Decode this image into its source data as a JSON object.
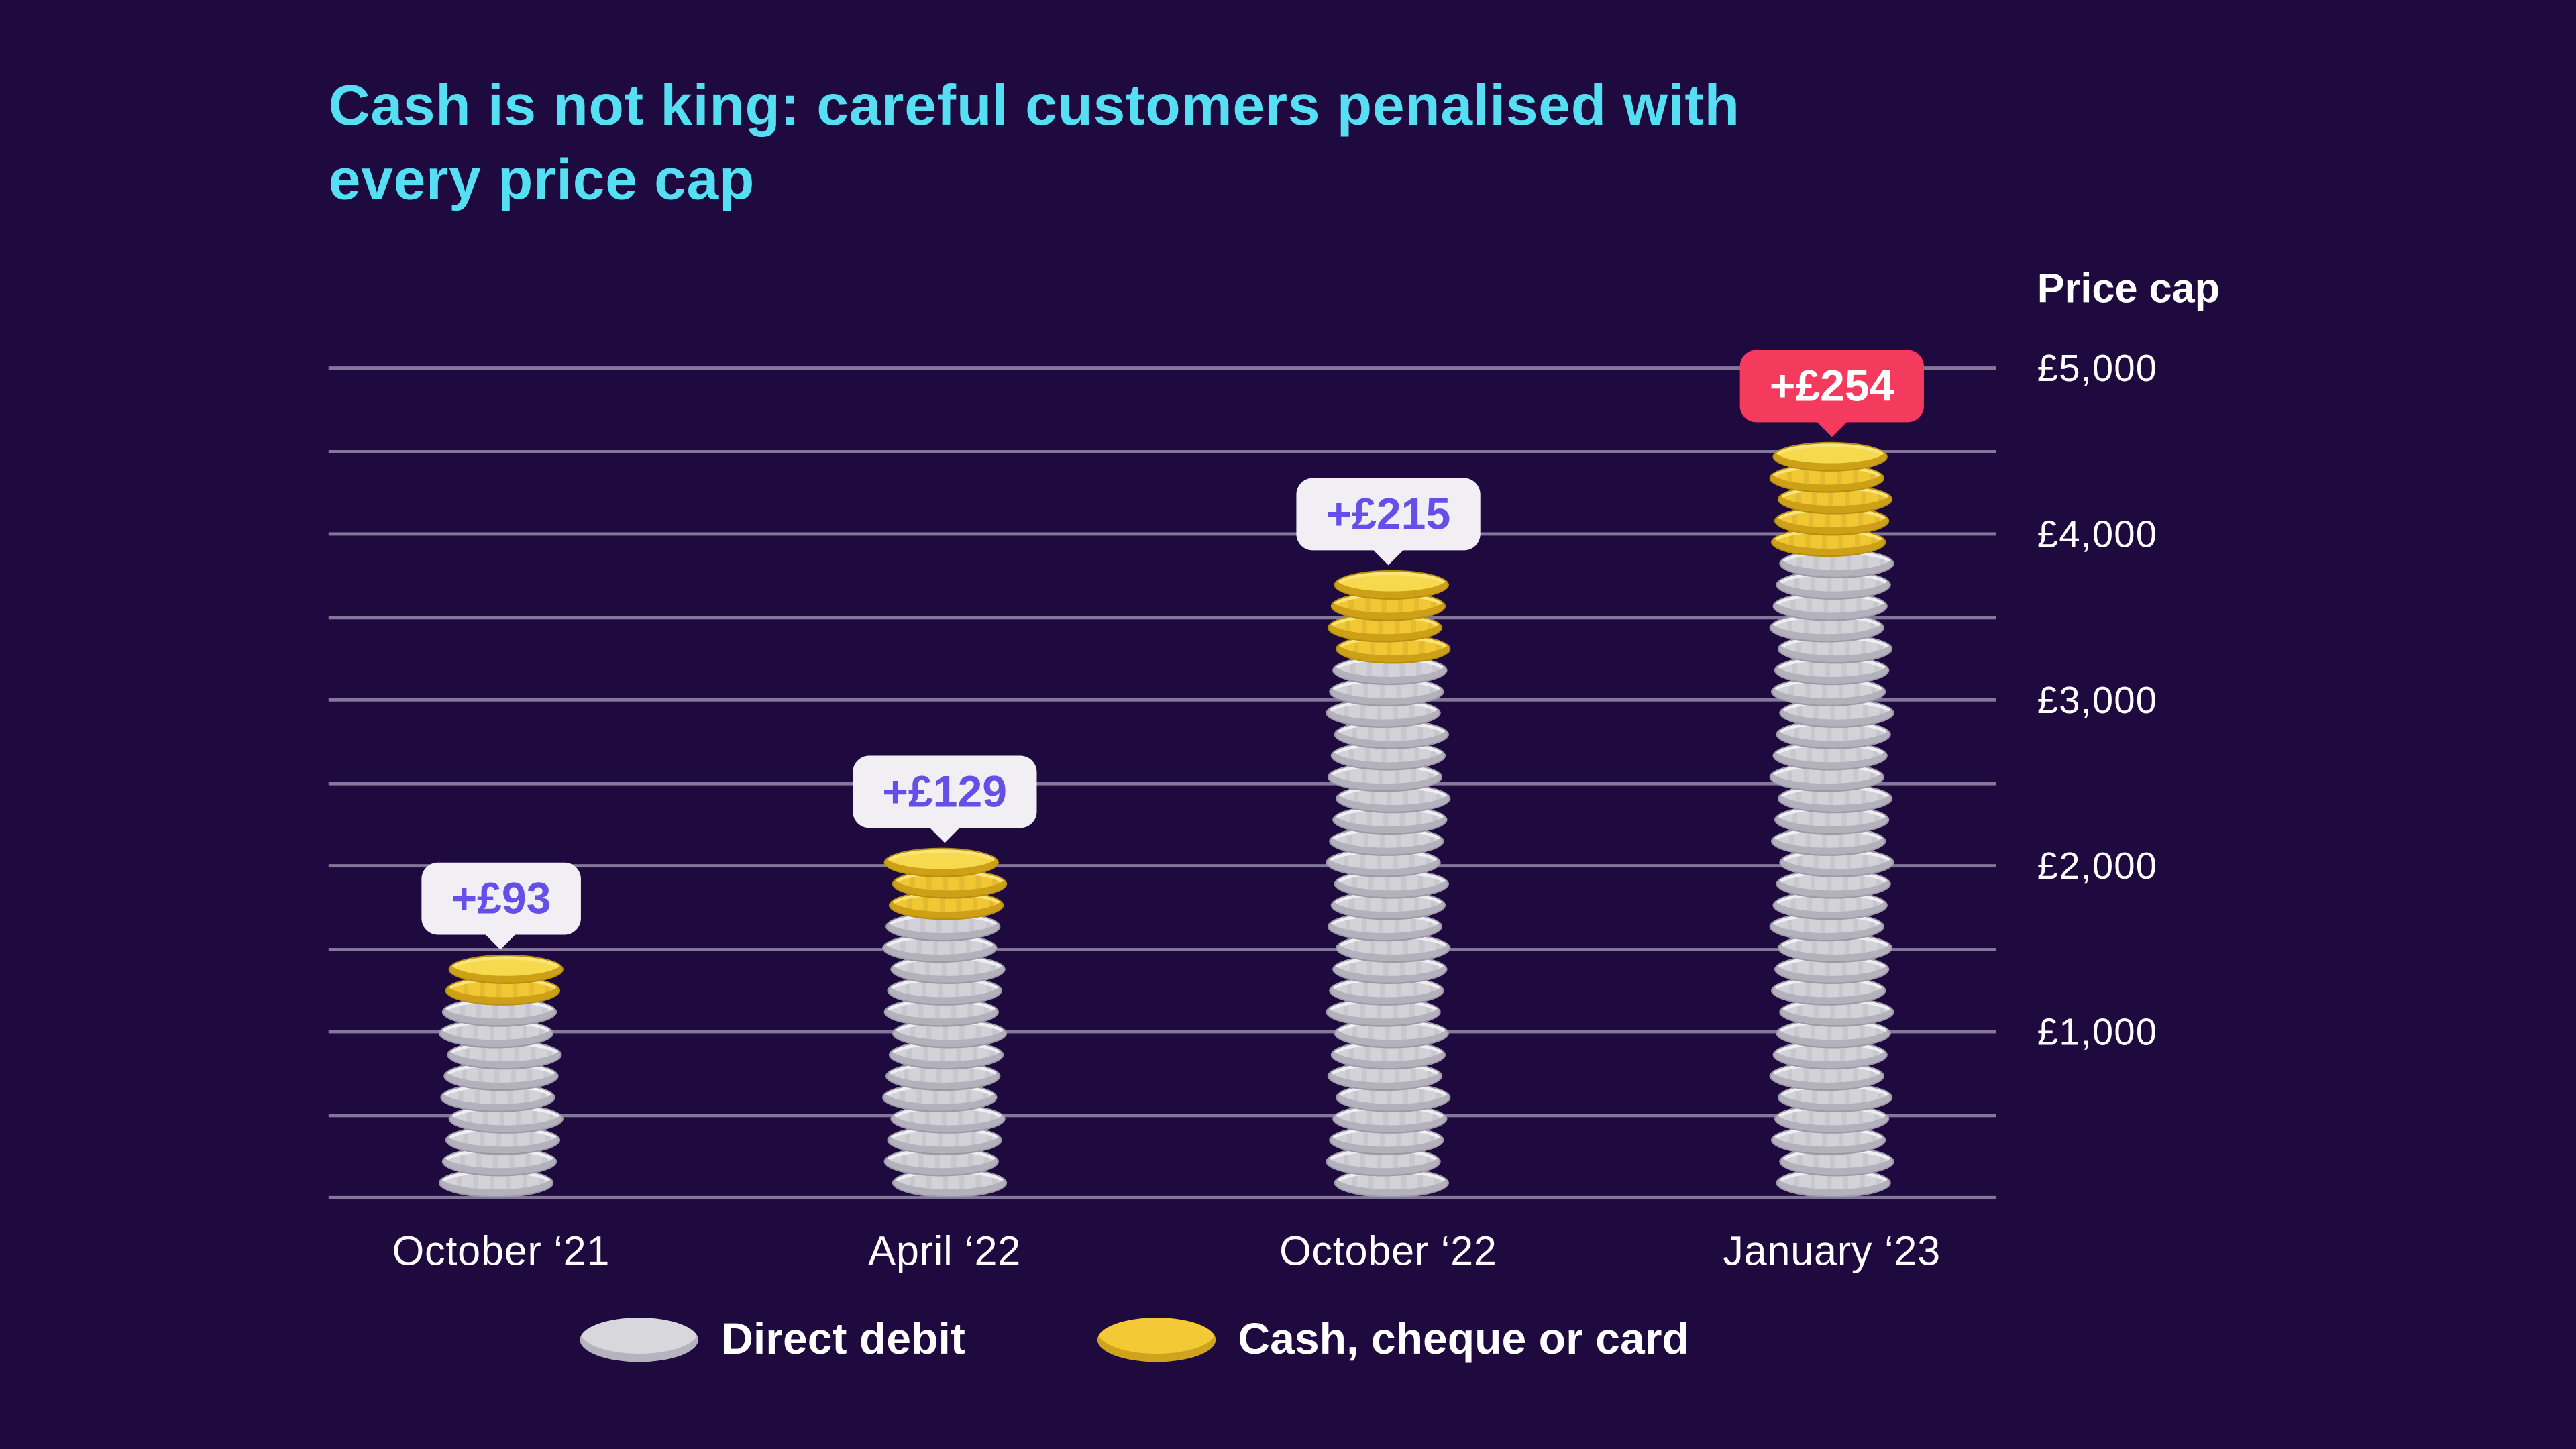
{
  "title_lines": [
    "Cash is not king: careful customers penalised with",
    "every price cap"
  ],
  "y_axis": {
    "title": "Price cap",
    "ticks": [
      {
        "value": 5000,
        "label": "£5,000"
      },
      {
        "value": 4000,
        "label": "£4,000"
      },
      {
        "value": 3000,
        "label": "£3,000"
      },
      {
        "value": 2000,
        "label": "£2,000"
      },
      {
        "value": 1000,
        "label": "£1,000"
      }
    ]
  },
  "legend": [
    {
      "label": "Direct debit",
      "swatch": "gray-coin"
    },
    {
      "label": "Cash, cheque or card",
      "swatch": "yellow-coin"
    }
  ],
  "colors": {
    "background": "#1f0a40",
    "title": "#56dff2",
    "text": "#ffffff",
    "gridline": "rgba(233,230,244,0.5)",
    "coin_gray": "#d3d2d8",
    "coin_yellow": "#f1c733",
    "badge_light_bg": "#f1eff3",
    "badge_light_text": "#6450e8",
    "badge_accent_bg": "#f43b5e",
    "badge_accent_text": "#ffffff"
  },
  "chart_data": {
    "type": "bar",
    "title": "Cash is not king: careful customers penalised with every price cap",
    "categories": [
      "October ‘21",
      "April ‘22",
      "October ‘22",
      "January ‘23"
    ],
    "series": [
      {
        "name": "Direct debit",
        "values": [
          1277,
          1971,
          3549,
          4279
        ]
      },
      {
        "name": "Cash, cheque or card",
        "values": [
          1370,
          2100,
          3764,
          4533
        ]
      }
    ],
    "annotations": [
      {
        "category": "October ‘21",
        "label": "+£93",
        "style": "light"
      },
      {
        "category": "April ‘22",
        "label": "+£129",
        "style": "light"
      },
      {
        "category": "October ‘22",
        "label": "+£215",
        "style": "light"
      },
      {
        "category": "January ‘23",
        "label": "+£254",
        "style": "accent"
      }
    ],
    "ylabel": "Price cap",
    "ylim": [
      0,
      5000
    ],
    "gridline_step": 500,
    "ytick_step": 1000,
    "grid": true,
    "legend_position": "bottom"
  }
}
